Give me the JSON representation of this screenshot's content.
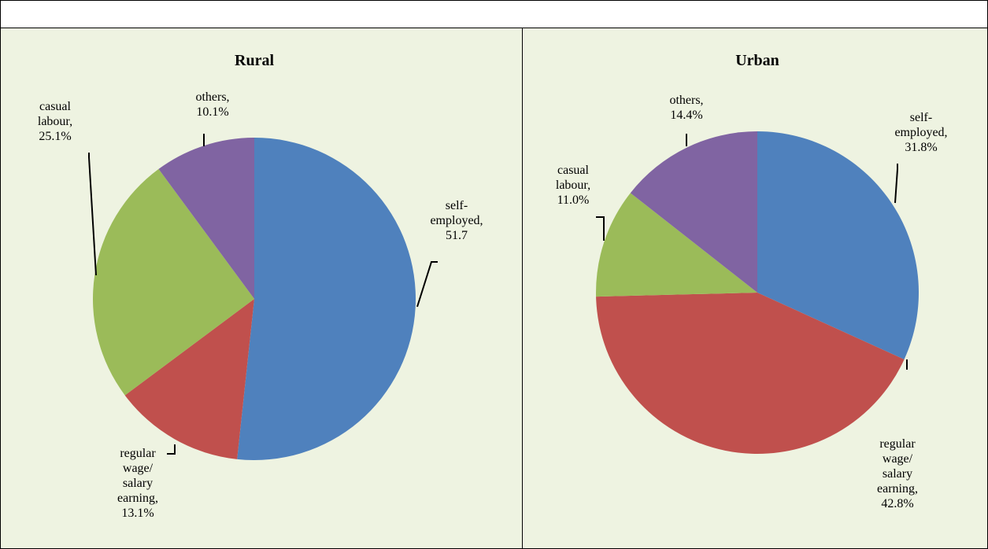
{
  "chart_data": [
    {
      "type": "pie",
      "title": "Rural",
      "values": [
        51.7,
        13.1,
        25.1,
        10.1
      ],
      "value_labels": [
        "self-employed, 51.7",
        "regular wage/ salary earning, 13.1%",
        "casual labour, 25.1%",
        "others, 10.1%"
      ],
      "colors": [
        "#4f81bd",
        "#c0504d",
        "#9bbb59",
        "#8064a2"
      ]
    },
    {
      "type": "pie",
      "title": "Urban",
      "values": [
        31.8,
        42.8,
        11.0,
        14.4
      ],
      "value_labels": [
        "self-employed, 31.8%",
        "regular wage/ salary earning, 42.8%",
        "casual labour, 11.0%",
        "others, 14.4%"
      ],
      "colors": [
        "#4f81bd",
        "#c0504d",
        "#9bbb59",
        "#8064a2"
      ]
    }
  ]
}
